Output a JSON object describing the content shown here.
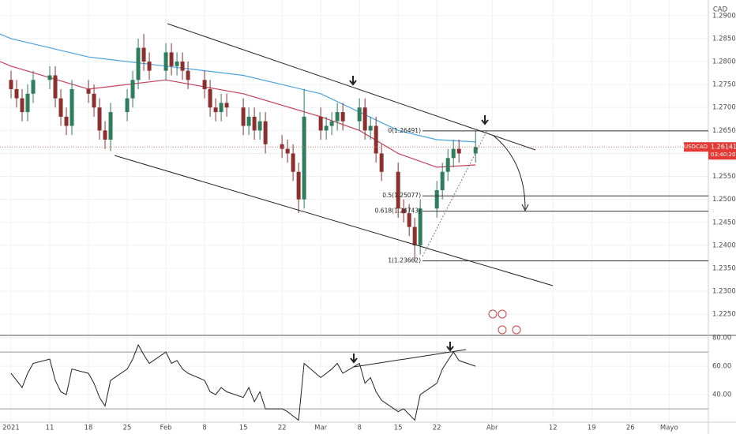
{
  "chart_data": [
    {
      "type": "candlestick",
      "symbol": "USDCAD",
      "currency": "CAD",
      "x": [
        3,
        4,
        5,
        6,
        7,
        10,
        11,
        12,
        13,
        14,
        17,
        18,
        19,
        20,
        21,
        24,
        25,
        26,
        27,
        28,
        31,
        32,
        33,
        34,
        35,
        38,
        39,
        40,
        41,
        42,
        45,
        46,
        47,
        48,
        49,
        52,
        53,
        54,
        55,
        56,
        59,
        60,
        61,
        62,
        63,
        66,
        67,
        68,
        69,
        70,
        73,
        74,
        75,
        76,
        77,
        80,
        81,
        82,
        83,
        84,
        87
      ],
      "open": [
        1.276,
        1.274,
        1.272,
        1.269,
        1.273,
        1.276,
        1.277,
        1.272,
        1.268,
        1.266,
        1.274,
        1.273,
        1.27,
        1.265,
        1.263,
        1.269,
        1.272,
        1.276,
        1.283,
        1.28,
        1.278,
        1.282,
        1.279,
        1.28,
        1.278,
        1.276,
        1.274,
        1.27,
        1.269,
        1.271,
        1.27,
        1.266,
        1.268,
        1.265,
        1.267,
        1.262,
        1.261,
        1.26,
        1.256,
        1.25,
        1.268,
        1.265,
        1.266,
        1.267,
        1.269,
        1.267,
        1.27,
        1.265,
        1.266,
        1.26,
        1.256,
        1.248,
        1.247,
        1.244,
        1.24,
        1.248,
        1.252,
        1.256,
        1.259,
        1.261,
        1.26
      ],
      "high": [
        1.278,
        1.276,
        1.274,
        1.275,
        1.278,
        1.279,
        1.279,
        1.274,
        1.27,
        1.276,
        1.276,
        1.275,
        1.272,
        1.267,
        1.271,
        1.274,
        1.278,
        1.285,
        1.286,
        1.282,
        1.284,
        1.284,
        1.282,
        1.282,
        1.28,
        1.278,
        1.276,
        1.272,
        1.273,
        1.273,
        1.272,
        1.27,
        1.27,
        1.269,
        1.269,
        1.264,
        1.263,
        1.262,
        1.258,
        1.274,
        1.27,
        1.268,
        1.269,
        1.271,
        1.271,
        1.272,
        1.272,
        1.268,
        1.268,
        1.262,
        1.258,
        1.25,
        1.249,
        1.246,
        1.25,
        1.254,
        1.258,
        1.261,
        1.263,
        1.263,
        1.2649
      ],
      "low": [
        1.272,
        1.27,
        1.267,
        1.267,
        1.271,
        1.274,
        1.27,
        1.266,
        1.264,
        1.264,
        1.271,
        1.268,
        1.263,
        1.261,
        1.2605,
        1.267,
        1.27,
        1.274,
        1.278,
        1.276,
        1.276,
        1.277,
        1.277,
        1.276,
        1.274,
        1.272,
        1.268,
        1.267,
        1.267,
        1.268,
        1.264,
        1.264,
        1.263,
        1.263,
        1.26,
        1.259,
        1.258,
        1.254,
        1.247,
        1.248,
        1.263,
        1.263,
        1.264,
        1.265,
        1.265,
        1.265,
        1.263,
        1.263,
        1.258,
        1.254,
        1.246,
        1.245,
        1.242,
        1.2366,
        1.238,
        1.246,
        1.25,
        1.254,
        1.257,
        1.258,
        1.258
      ],
      "close": [
        1.274,
        1.272,
        1.269,
        1.273,
        1.276,
        1.277,
        1.272,
        1.268,
        1.266,
        1.274,
        1.273,
        1.27,
        1.265,
        1.263,
        1.269,
        1.272,
        1.276,
        1.283,
        1.28,
        1.278,
        1.282,
        1.279,
        1.28,
        1.278,
        1.276,
        1.274,
        1.27,
        1.269,
        1.271,
        1.27,
        1.266,
        1.268,
        1.265,
        1.267,
        1.262,
        1.261,
        1.26,
        1.256,
        1.25,
        1.268,
        1.265,
        1.266,
        1.267,
        1.269,
        1.267,
        1.27,
        1.265,
        1.266,
        1.26,
        1.256,
        1.248,
        1.247,
        1.244,
        1.24,
        1.248,
        1.252,
        1.256,
        1.259,
        1.261,
        1.26,
        1.26141
      ],
      "up_color": "#2e7d5b",
      "down_color": "#8e2f2f",
      "moving_averages": [
        {
          "color": "#4aa3df",
          "x": [
            1,
            3,
            17,
            31,
            45,
            59,
            66,
            73,
            80,
            87
          ],
          "values": [
            1.286,
            1.285,
            1.281,
            1.279,
            1.277,
            1.273,
            1.269,
            1.265,
            1.263,
            1.2625
          ]
        },
        {
          "color": "#c2405a",
          "x": [
            1,
            3,
            17,
            31,
            45,
            59,
            66,
            73,
            80,
            87
          ],
          "values": [
            1.28,
            1.279,
            1.274,
            1.276,
            1.273,
            1.268,
            1.265,
            1.26,
            1.257,
            1.2575
          ]
        }
      ],
      "fib_levels": [
        {
          "value": 1.26491,
          "label": "0(1.26491)"
        },
        {
          "value": 1.25077,
          "label": "0.5(1.25077)"
        },
        {
          "value": 1.24743,
          "label": "0.618(1.24743)"
        },
        {
          "value": 1.23662,
          "label": "1(1.23662)"
        }
      ],
      "last_price": 1.26141,
      "countdown": "03:40:20",
      "xlim": [
        1,
        129.1
      ],
      "ylim": [
        1.2204,
        1.2934
      ],
      "yticks": [
        {
          "value": 1.29,
          "label": "1.29000"
        },
        {
          "value": 1.285,
          "label": "1.28500"
        },
        {
          "value": 1.28,
          "label": "1.28000"
        },
        {
          "value": 1.275,
          "label": "1.27500"
        },
        {
          "value": 1.27,
          "label": "1.27000"
        },
        {
          "value": 1.265,
          "label": "1.26500"
        },
        {
          "value": 1.26,
          "label": "1.26000"
        },
        {
          "value": 1.255,
          "label": "1.25500"
        },
        {
          "value": 1.25,
          "label": "1.25000"
        },
        {
          "value": 1.245,
          "label": "1.24500"
        },
        {
          "value": 1.24,
          "label": "1.24000"
        },
        {
          "value": 1.235,
          "label": "1.23500"
        },
        {
          "value": 1.23,
          "label": "1.23000"
        },
        {
          "value": 1.225,
          "label": "1.22500"
        }
      ],
      "grid": true
    },
    {
      "type": "line",
      "color": "#222222",
      "x": [
        3,
        4,
        5,
        6,
        7,
        10,
        11,
        12,
        13,
        14,
        17,
        18,
        19,
        20,
        21,
        24,
        25,
        26,
        27,
        28,
        31,
        32,
        33,
        34,
        35,
        38,
        39,
        40,
        41,
        42,
        45,
        46,
        47,
        48,
        49,
        52,
        53,
        54,
        55,
        56,
        59,
        60,
        61,
        62,
        63,
        66,
        67,
        68,
        69,
        70,
        73,
        74,
        75,
        76,
        77,
        80,
        81,
        82,
        83,
        84,
        87
      ],
      "values": [
        55,
        50,
        45,
        55,
        62,
        65,
        50,
        42,
        40,
        58,
        55,
        48,
        38,
        32,
        50,
        58,
        65,
        75,
        68,
        62,
        70,
        62,
        64,
        58,
        55,
        50,
        42,
        40,
        45,
        42,
        38,
        45,
        35,
        42,
        30,
        30,
        28,
        25,
        22,
        62,
        52,
        55,
        58,
        62,
        55,
        62,
        48,
        52,
        42,
        36,
        28,
        30,
        26,
        22,
        40,
        48,
        58,
        64,
        70,
        64,
        60
      ],
      "bands": [
        70,
        30
      ],
      "xlim": [
        1,
        129.1
      ],
      "ylim": [
        20.6,
        81.7
      ],
      "yticks": [
        {
          "value": 80,
          "label": "80.00"
        },
        {
          "value": 60,
          "label": "60.00"
        },
        {
          "value": 40,
          "label": "40.00"
        }
      ],
      "xticks": [
        {
          "value": 3,
          "label": "2021"
        },
        {
          "value": 10,
          "label": "11"
        },
        {
          "value": 17,
          "label": "18"
        },
        {
          "value": 24,
          "label": "25"
        },
        {
          "value": 31,
          "label": "Feb"
        },
        {
          "value": 38,
          "label": "8"
        },
        {
          "value": 45,
          "label": "15"
        },
        {
          "value": 52,
          "label": "22"
        },
        {
          "value": 59,
          "label": "Mar"
        },
        {
          "value": 66,
          "label": "8"
        },
        {
          "value": 73,
          "label": "15"
        },
        {
          "value": 80,
          "label": "22"
        },
        {
          "value": 90,
          "label": "Abr"
        },
        {
          "value": 101,
          "label": "12"
        },
        {
          "value": 108,
          "label": "19"
        },
        {
          "value": 115,
          "label": "26"
        },
        {
          "value": 122,
          "label": "Mayo"
        }
      ],
      "grid": true
    }
  ]
}
